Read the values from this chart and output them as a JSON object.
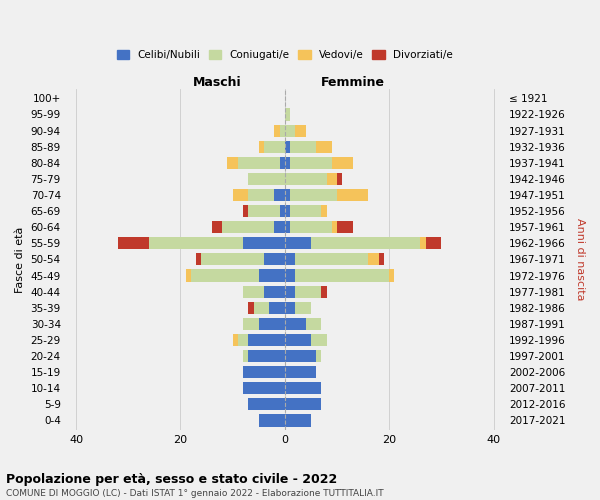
{
  "age_groups": [
    "0-4",
    "5-9",
    "10-14",
    "15-19",
    "20-24",
    "25-29",
    "30-34",
    "35-39",
    "40-44",
    "45-49",
    "50-54",
    "55-59",
    "60-64",
    "65-69",
    "70-74",
    "75-79",
    "80-84",
    "85-89",
    "90-94",
    "95-99",
    "100+"
  ],
  "birth_years": [
    "2017-2021",
    "2012-2016",
    "2007-2011",
    "2002-2006",
    "1997-2001",
    "1992-1996",
    "1987-1991",
    "1982-1986",
    "1977-1981",
    "1972-1976",
    "1967-1971",
    "1962-1966",
    "1957-1961",
    "1952-1956",
    "1947-1951",
    "1942-1946",
    "1937-1941",
    "1932-1936",
    "1927-1931",
    "1922-1926",
    "≤ 1921"
  ],
  "maschi": {
    "celibi": [
      5,
      7,
      8,
      8,
      7,
      7,
      5,
      3,
      4,
      5,
      4,
      8,
      2,
      1,
      2,
      0,
      1,
      0,
      0,
      0,
      0
    ],
    "coniugati": [
      0,
      0,
      0,
      0,
      1,
      2,
      3,
      3,
      4,
      13,
      12,
      18,
      10,
      6,
      5,
      7,
      8,
      4,
      1,
      0,
      0
    ],
    "vedovi": [
      0,
      0,
      0,
      0,
      0,
      1,
      0,
      0,
      0,
      1,
      0,
      0,
      0,
      0,
      3,
      0,
      2,
      1,
      1,
      0,
      0
    ],
    "divorziati": [
      0,
      0,
      0,
      0,
      0,
      0,
      0,
      1,
      0,
      0,
      1,
      6,
      2,
      1,
      0,
      0,
      0,
      0,
      0,
      0,
      0
    ]
  },
  "femmine": {
    "nubili": [
      5,
      7,
      7,
      6,
      6,
      5,
      4,
      2,
      2,
      2,
      2,
      5,
      1,
      1,
      1,
      0,
      1,
      1,
      0,
      0,
      0
    ],
    "coniugate": [
      0,
      0,
      0,
      0,
      1,
      3,
      3,
      3,
      5,
      18,
      14,
      21,
      8,
      6,
      9,
      8,
      8,
      5,
      2,
      1,
      0
    ],
    "vedove": [
      0,
      0,
      0,
      0,
      0,
      0,
      0,
      0,
      0,
      1,
      2,
      1,
      1,
      1,
      6,
      2,
      4,
      3,
      2,
      0,
      0
    ],
    "divorziate": [
      0,
      0,
      0,
      0,
      0,
      0,
      0,
      0,
      1,
      0,
      1,
      3,
      3,
      0,
      0,
      1,
      0,
      0,
      0,
      0,
      0
    ]
  },
  "colors": {
    "celibi_nubili": "#4472c4",
    "coniugati": "#c5d9a0",
    "vedovi": "#f5c35a",
    "divorziati": "#c0392b"
  },
  "xlim": [
    -42,
    42
  ],
  "xticks": [
    -40,
    -20,
    0,
    20,
    40
  ],
  "xticklabels": [
    "40",
    "20",
    "0",
    "20",
    "40"
  ],
  "title": "Popolazione per età, sesso e stato civile - 2022",
  "subtitle": "COMUNE DI MOGGIO (LC) - Dati ISTAT 1° gennaio 2022 - Elaborazione TUTTITALIA.IT",
  "ylabel_left": "Fasce di età",
  "ylabel_right": "Anni di nascita",
  "label_maschi": "Maschi",
  "label_femmine": "Femmine",
  "legend_labels": [
    "Celibi/Nubili",
    "Coniugati/e",
    "Vedovi/e",
    "Divorziati/e"
  ],
  "bg_color": "#f0f0f0",
  "bar_height": 0.75
}
